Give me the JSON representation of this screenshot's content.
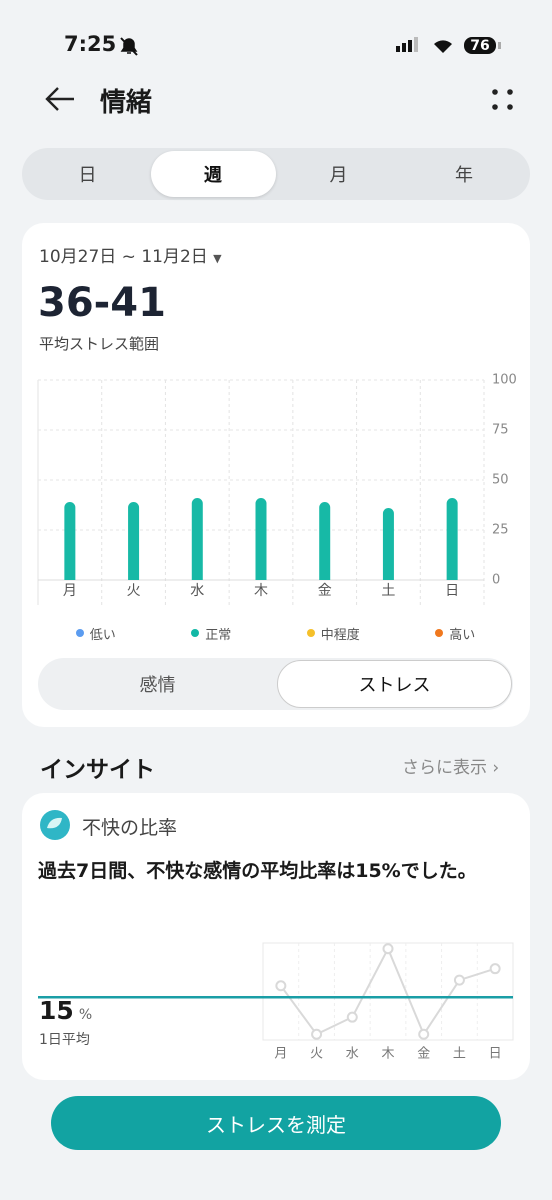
{
  "status": {
    "time": "7:25",
    "battery": "76"
  },
  "header": {
    "title": "情緒"
  },
  "tabs": {
    "items": [
      "日",
      "週",
      "月",
      "年"
    ],
    "selected": 1
  },
  "summary": {
    "date_range": "10月27日 ~ 11月2日",
    "range": "36-41",
    "range_label": "平均ストレス範囲"
  },
  "legend": [
    {
      "name": "低い",
      "color": "#5b9cf0"
    },
    {
      "name": "正常",
      "color": "#12b8a6"
    },
    {
      "name": "中程度",
      "color": "#f5c02a"
    },
    {
      "name": "高い",
      "color": "#f0781e"
    }
  ],
  "toggle": {
    "items": [
      "感情",
      "ストレス"
    ],
    "selected": 1
  },
  "insight": {
    "title": "インサイト",
    "more": "さらに表示",
    "card_title": "不快の比率",
    "text": "過去7日間、不快な感情の平均比率は15%でした。",
    "average": 15,
    "unit": "%",
    "average_label": "1日平均"
  },
  "button": "ストレスを測定",
  "chart_data": [
    {
      "type": "bar",
      "categories": [
        "月",
        "火",
        "水",
        "木",
        "金",
        "土",
        "日"
      ],
      "values": [
        39,
        39,
        41,
        41,
        39,
        36,
        41
      ],
      "color": "#17b9a6",
      "ylim": [
        0,
        100
      ],
      "yticks": [
        0,
        25,
        50,
        75,
        100
      ],
      "grid": true
    },
    {
      "type": "line",
      "categories": [
        "月",
        "火",
        "水",
        "木",
        "金",
        "土",
        "日"
      ],
      "values": [
        19,
        2,
        8,
        32,
        2,
        21,
        25
      ],
      "color": "#d9d9d9",
      "ylim": [
        0,
        34
      ],
      "average_color": "#1a9ea6"
    }
  ]
}
